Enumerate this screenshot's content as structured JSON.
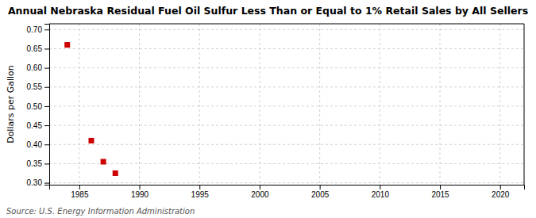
{
  "chart_data": {
    "type": "scatter",
    "title": "Annual Nebraska Residual Fuel Oil Sulfur Less Than or Equal to 1% Retail Sales by All Sellers",
    "ylabel": "Dollars per Gallon",
    "annotations": [
      "Source: U.S. Energy Information Administration"
    ],
    "x": [
      1984,
      1986,
      1987,
      1988
    ],
    "y": [
      0.66,
      0.41,
      0.355,
      0.325
    ],
    "color": "#cc0000",
    "marker": "square",
    "xlim": [
      1982.5,
      2022
    ],
    "ylim": [
      0.295,
      0.715
    ],
    "xticks": [
      1985,
      1990,
      1995,
      2000,
      2005,
      2010,
      2015,
      2020
    ],
    "yticks": [
      {
        "value": 0.3,
        "label": "0.30"
      },
      0.35,
      {
        "value": 0.4,
        "label": "0.40"
      },
      0.45,
      {
        "value": 0.5,
        "label": "0.50"
      },
      0.55,
      {
        "value": 0.6,
        "label": "0.60"
      },
      0.65,
      {
        "value": 0.7,
        "label": "0.70"
      }
    ],
    "grid": true
  }
}
